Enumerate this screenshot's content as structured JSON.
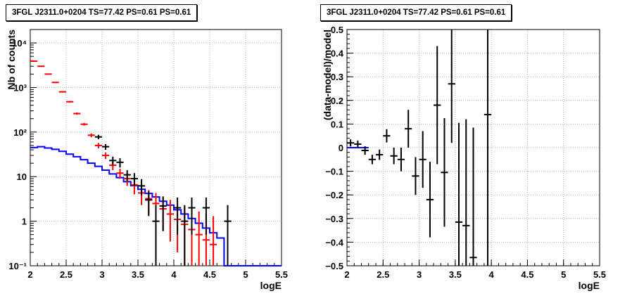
{
  "chart_data": [
    {
      "type": "step-histogram-with-errorbars",
      "title": "3FGL J2311.0+0204 TS=77.42 PS=0.61 PS=0.61",
      "xlabel": "logE",
      "ylabel": "Nb of counts",
      "xlim": [
        2,
        5.5
      ],
      "ylim": [
        0.1,
        20000
      ],
      "yscale": "log",
      "grid": true,
      "x_ticks": [
        "2",
        "2.5",
        "3",
        "3.5",
        "4",
        "4.5",
        "5",
        "5.5"
      ],
      "y_ticks": [
        "10⁻¹",
        "1",
        "10",
        "10²",
        "10³",
        "10⁴"
      ],
      "series": [
        {
          "color": "#0000ff",
          "kind": "step",
          "x_edges": [
            2.0,
            2.1,
            2.2,
            2.3,
            2.4,
            2.5,
            2.6,
            2.7,
            2.8,
            2.9,
            3.0,
            3.1,
            3.2,
            3.3,
            3.4,
            3.5,
            3.6,
            3.7,
            3.8,
            3.9,
            4.0,
            4.1,
            4.2,
            4.3,
            4.4,
            4.5,
            4.6,
            4.7,
            4.8,
            4.9,
            5.0,
            5.1,
            5.2,
            5.3,
            5.4,
            5.5
          ],
          "values": [
            45,
            47,
            44,
            41,
            37,
            32,
            28,
            24,
            20,
            17,
            14,
            11.5,
            9.5,
            7.7,
            6.3,
            5.2,
            4.2,
            3.5,
            2.8,
            2.3,
            1.8,
            1.45,
            1.15,
            0.9,
            0.7,
            0.55,
            0.42,
            0.1,
            0.1,
            0.1,
            0.1,
            0.1,
            0.1,
            0.1,
            0.1
          ]
        },
        {
          "color": "#ff0000",
          "kind": "errorbar",
          "x": [
            2.05,
            2.15,
            2.25,
            2.35,
            2.45,
            2.55,
            2.65,
            2.75,
            2.85,
            2.95,
            3.05,
            3.15,
            3.25,
            3.35,
            3.45,
            3.55,
            3.65,
            3.75,
            3.85,
            3.95,
            4.05,
            4.15,
            4.25,
            4.35,
            4.45,
            4.55
          ],
          "y": [
            3900,
            3000,
            2000,
            1300,
            800,
            480,
            260,
            150,
            85,
            50,
            30,
            18,
            12,
            9,
            6.5,
            4.3,
            3.2,
            2.5,
            1.9,
            1.45,
            1.1,
            0.85,
            0.65,
            0.5,
            0.38,
            0.3
          ],
          "ylow": [
            3800,
            2950,
            1950,
            1260,
            770,
            460,
            245,
            140,
            77,
            43,
            25,
            14,
            9,
            6.2,
            4.0,
            2.3,
            1.5,
            1.0,
            0.6,
            0.35,
            0.2,
            0.1,
            0.1,
            0.1,
            0.1,
            0.1
          ],
          "yhigh": [
            4000,
            3050,
            2060,
            1340,
            830,
            500,
            275,
            160,
            93,
            57,
            35,
            22,
            15,
            11.8,
            9,
            6.6,
            5.0,
            4.3,
            3.5,
            3.0,
            2.5,
            2.2,
            1.9,
            1.65,
            1.45,
            1.3
          ]
        },
        {
          "color": "#000000",
          "kind": "errorbar",
          "x": [
            2.95,
            3.05,
            3.15,
            3.25,
            3.35,
            3.45,
            3.55,
            3.65,
            3.75,
            3.85,
            4.05,
            4.15,
            4.25,
            4.45,
            4.75
          ],
          "y": [
            78,
            47,
            23,
            21,
            11,
            9,
            6.2,
            3.0,
            1.0,
            2.2,
            2.0,
            1.0,
            2.0,
            2.0,
            1.0
          ],
          "ylow": [
            69,
            40,
            18,
            16,
            8,
            6.2,
            3.8,
            1.3,
            0.1,
            0.6,
            0.5,
            0.1,
            0.5,
            0.5,
            0.1
          ],
          "yhigh": [
            87,
            54,
            28,
            26,
            14,
            12,
            8.8,
            4.7,
            2.3,
            3.6,
            3.4,
            2.3,
            3.4,
            3.4,
            2.3
          ]
        }
      ]
    },
    {
      "type": "errorbar",
      "title": "3FGL J2311.0+0204 TS=77.42 PS=0.61 PS=0.61",
      "xlabel": "logE",
      "ylabel": "(data-model)/model",
      "xlim": [
        2,
        5.5
      ],
      "ylim": [
        -0.5,
        0.5
      ],
      "grid": true,
      "x_ticks": [
        "2",
        "2.5",
        "3",
        "3.5",
        "4",
        "4.5",
        "5",
        "5.5"
      ],
      "y_ticks": [
        "−0.5",
        "−0.4",
        "−0.3",
        "−0.2",
        "−0.1",
        "0",
        "0.1",
        "0.2",
        "0.3",
        "0.4",
        "0.5"
      ],
      "series": [
        {
          "color": "#000000",
          "kind": "errorbar",
          "x": [
            2.05,
            2.15,
            2.25,
            2.35,
            2.45,
            2.55,
            2.65,
            2.75,
            2.85,
            2.95,
            3.05,
            3.15,
            3.25,
            3.35,
            3.45,
            3.55,
            3.65,
            3.75,
            3.95
          ],
          "y": [
            0.02,
            0.015,
            -0.012,
            -0.05,
            -0.03,
            0.05,
            -0.035,
            -0.05,
            0.08,
            -0.12,
            -0.05,
            -0.22,
            0.18,
            -0.105,
            0.27,
            -0.315,
            -0.33,
            -0.465,
            0.14
          ],
          "yerr": [
            0.015,
            0.015,
            0.018,
            0.02,
            0.022,
            0.028,
            0.035,
            0.05,
            0.08,
            0.08,
            0.12,
            0.16,
            0.25,
            0.23,
            0.25,
            0.42,
            0.45,
            0.55,
            0.8
          ]
        }
      ]
    }
  ]
}
